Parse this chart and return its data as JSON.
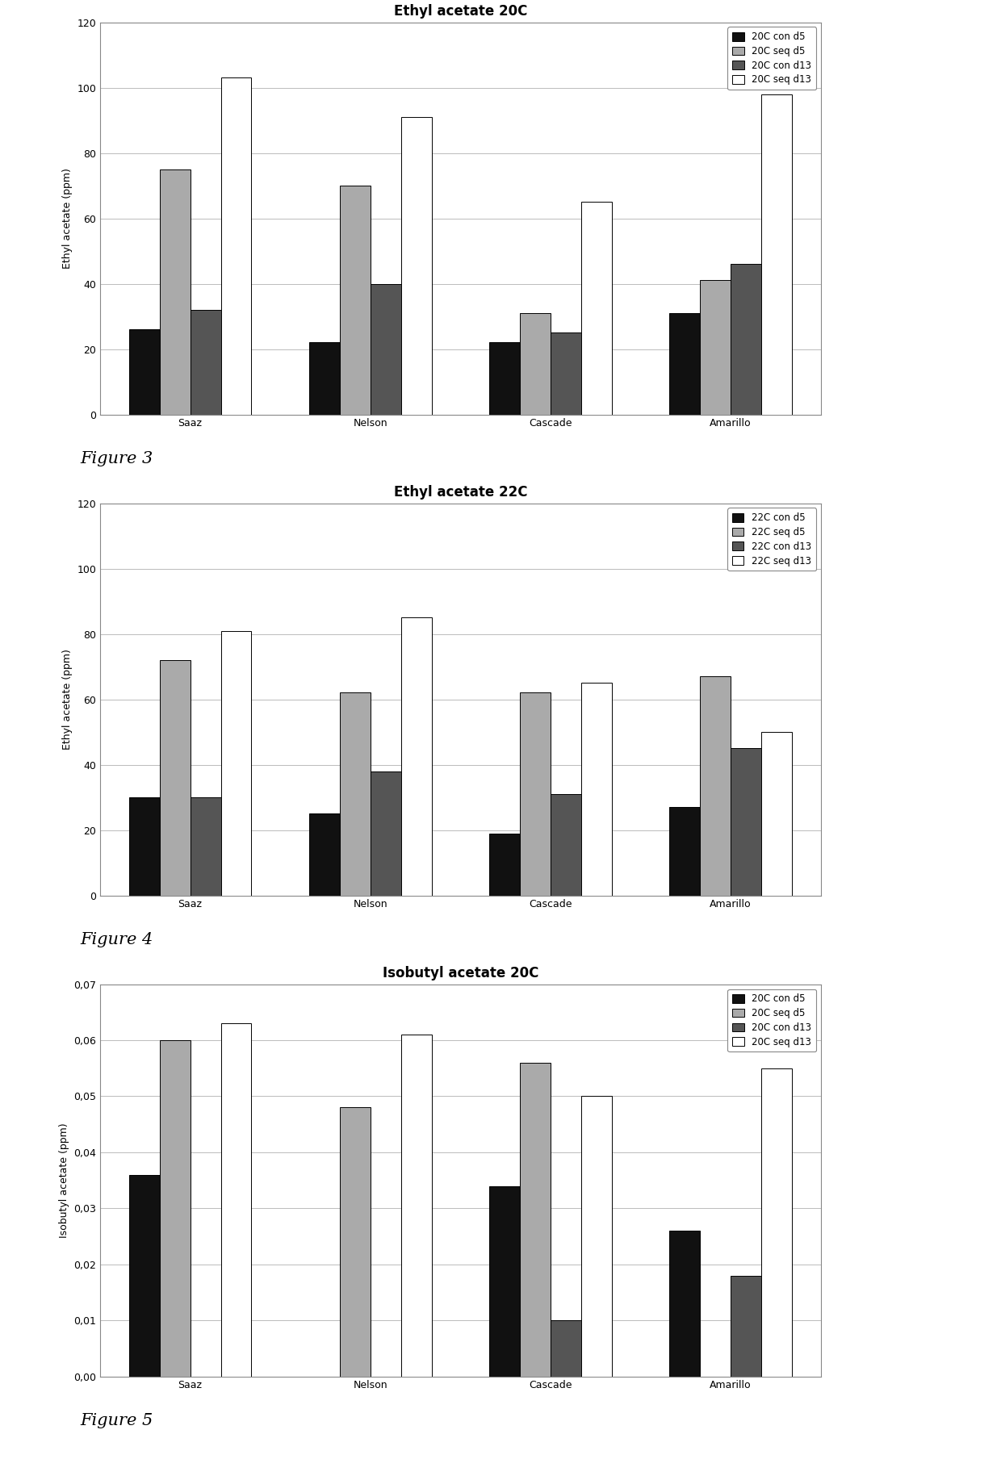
{
  "fig1": {
    "title": "Ethyl acetate 20C",
    "ylabel": "Ethyl acetate (ppm)",
    "ylim": [
      0,
      120
    ],
    "yticks": [
      0,
      20,
      40,
      60,
      80,
      100,
      120
    ],
    "ytick_labels": [
      "0",
      "20",
      "40",
      "60",
      "80",
      "100",
      "120"
    ],
    "categories": [
      "Saaz",
      "Nelson",
      "Cascade",
      "Amarillo"
    ],
    "legend_labels": [
      "20C con d5",
      "20C seq d5",
      "20C con d13",
      "20C seq d13"
    ],
    "figure_label": "Figure 3",
    "data": {
      "con_d5": [
        26,
        22,
        22,
        31
      ],
      "seq_d5": [
        75,
        70,
        31,
        41
      ],
      "con_d13": [
        32,
        40,
        25,
        46
      ],
      "seq_d13": [
        103,
        91,
        65,
        98
      ]
    }
  },
  "fig2": {
    "title": "Ethyl acetate 22C",
    "ylabel": "Ethyl acetate (ppm)",
    "ylim": [
      0,
      120
    ],
    "yticks": [
      0,
      20,
      40,
      60,
      80,
      100,
      120
    ],
    "ytick_labels": [
      "0",
      "20",
      "40",
      "60",
      "80",
      "100",
      "120"
    ],
    "categories": [
      "Saaz",
      "Nelson",
      "Cascade",
      "Amarillo"
    ],
    "legend_labels": [
      "22C con d5",
      "22C seq d5",
      "22C con d13",
      "22C seq d13"
    ],
    "figure_label": "Figure 4",
    "data": {
      "con_d5": [
        30,
        25,
        19,
        27
      ],
      "seq_d5": [
        72,
        62,
        62,
        67
      ],
      "con_d13": [
        30,
        38,
        31,
        45
      ],
      "seq_d13": [
        81,
        85,
        65,
        50
      ]
    }
  },
  "fig3": {
    "title": "Isobutyl acetate 20C",
    "ylabel": "Isobutyl acetate (ppm)",
    "ylim": [
      0,
      0.07
    ],
    "yticks": [
      0.0,
      0.01,
      0.02,
      0.03,
      0.04,
      0.05,
      0.06,
      0.07
    ],
    "ytick_labels": [
      "0,00",
      "0,01",
      "0,02",
      "0,03",
      "0,04",
      "0,05",
      "0,06",
      "0,07"
    ],
    "categories": [
      "Saaz",
      "Nelson",
      "Cascade",
      "Amarillo"
    ],
    "legend_labels": [
      "20C con d5",
      "20C seq d5",
      "20C con d13",
      "20C seq d13"
    ],
    "figure_label": "Figure 5",
    "data": {
      "con_d5": [
        0.036,
        0.0,
        0.034,
        0.026
      ],
      "seq_d5": [
        0.06,
        0.048,
        0.056,
        0.0
      ],
      "con_d13": [
        0.0,
        0.0,
        0.01,
        0.018
      ],
      "seq_d13": [
        0.063,
        0.061,
        0.05,
        0.055
      ]
    }
  },
  "colors": {
    "con_d5": "#111111",
    "seq_d5": "#aaaaaa",
    "con_d13": "#555555",
    "seq_d13": "#ffffff"
  },
  "bar_edge_color": "#000000",
  "background_color": "#ffffff",
  "plot_bg": "#ffffff",
  "grid_color": "#bbbbbb",
  "bar_width": 0.17,
  "title_fontsize": 12,
  "label_fontsize": 9,
  "tick_fontsize": 9,
  "legend_fontsize": 8.5,
  "figure_label_fontsize": 15
}
